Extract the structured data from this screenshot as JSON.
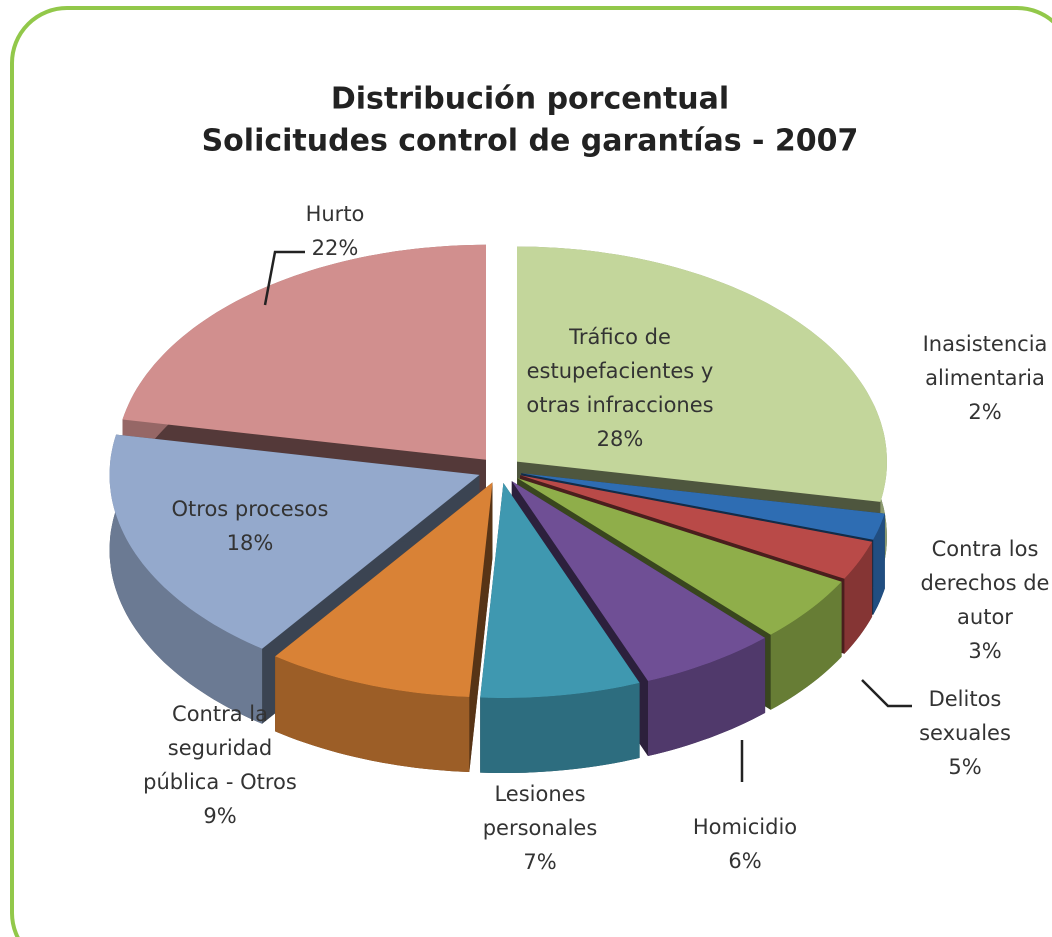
{
  "chart_data": {
    "type": "pie",
    "title": [
      "Distribución porcentual",
      "Solicitudes control de garantías - 2007"
    ],
    "categories": [
      "Tráfico de estupefacientes y otras infracciones",
      "Inasistencia alimentaria",
      "Contra los derechos de autor",
      "Delitos sexuales",
      "Homicidio",
      "Lesiones personales",
      "Contra la seguridad pública - Otros",
      "Otros procesos",
      "Hurto"
    ],
    "values": [
      28,
      2,
      3,
      5,
      6,
      7,
      9,
      18,
      22
    ],
    "value_labels": [
      "28%",
      "2%",
      "3%",
      "5%",
      "6%",
      "7%",
      "9%",
      "18%",
      "22%"
    ],
    "colors": [
      "#c3d69b",
      "#2e6db3",
      "#b94a48",
      "#8fae4a",
      "#6f4f95",
      "#3f98b0",
      "#d98236",
      "#94a9cc",
      "#d18f8e"
    ]
  }
}
